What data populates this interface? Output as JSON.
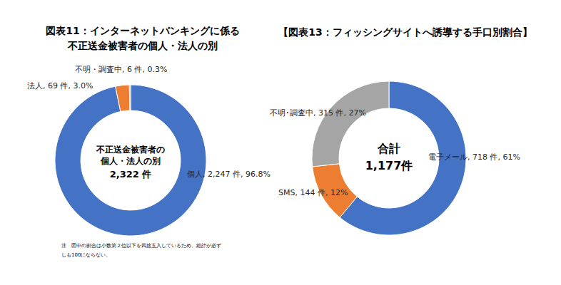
{
  "chart_data": [
    {
      "type": "donut",
      "title": [
        "図表11：インターネットバンキングに係る",
        "不正送金被害者の個人・法人の別"
      ],
      "categories": [
        "個人",
        "法人",
        "不明・調査中"
      ],
      "values": [
        2247,
        69,
        6
      ],
      "value_labels": [
        "2,247 件",
        "69 件",
        "6 件"
      ],
      "percents": [
        96.8,
        3.0,
        0.3
      ],
      "percent_labels": [
        "96.8%",
        "3.0%",
        "0.3%"
      ],
      "colors": [
        "#4472c4",
        "#ed7d31",
        "#a5a5a5"
      ],
      "data_labels": true,
      "center_text": [
        "不正送金被害者の",
        "個人・法人の別"
      ],
      "total": 2322,
      "total_label": "2,322 件",
      "note": [
        "注　図中の割合は小数第２位以下を四捨五入しているため、総計が必ず",
        "しも100にならない。"
      ]
    },
    {
      "type": "donut",
      "title": [
        "【図表13：フィッシングサイトへ誘導する手口別割合】"
      ],
      "categories": [
        "電子メール",
        "SMS",
        "不明･調査中"
      ],
      "values": [
        718,
        144,
        315
      ],
      "value_labels": [
        "718 件",
        "144 件",
        "315 件"
      ],
      "percents": [
        61,
        12,
        27
      ],
      "percent_labels": [
        "61%",
        "12%",
        "27%"
      ],
      "colors": [
        "#4472c4",
        "#ed7d31",
        "#a5a5a5"
      ],
      "data_labels": true,
      "center_text": [
        "合計"
      ],
      "total": 1177,
      "total_label": "1,177件"
    }
  ]
}
